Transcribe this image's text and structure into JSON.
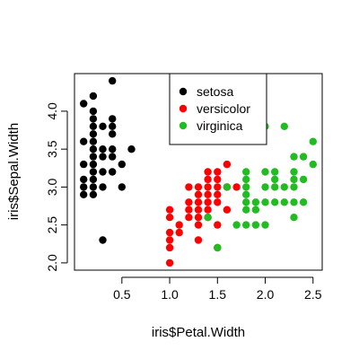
{
  "chart_data": {
    "type": "scatter",
    "title": "",
    "xlabel": "iris$Petal.Width",
    "ylabel": "iris$Sepal.Width",
    "xlim": [
      0.1,
      2.5
    ],
    "ylim": [
      2.0,
      4.4
    ],
    "x_ticks": [
      0.5,
      1.0,
      1.5,
      2.0,
      2.5
    ],
    "x_tick_labels": [
      "0.5",
      "1.0",
      "1.5",
      "2.0",
      "2.5"
    ],
    "y_ticks": [
      2.0,
      2.5,
      3.0,
      3.5,
      4.0
    ],
    "y_tick_labels": [
      "2.0",
      "2.5",
      "3.0",
      "3.5",
      "4.0"
    ],
    "grid": false,
    "legend_position": "top-center",
    "series": [
      {
        "name": "setosa",
        "color": "#000000",
        "points": [
          [
            0.1,
            3.6
          ],
          [
            0.1,
            4.1
          ],
          [
            0.1,
            3.1
          ],
          [
            0.1,
            3.0
          ],
          [
            0.1,
            2.9
          ],
          [
            0.1,
            3.3
          ],
          [
            0.2,
            3.5
          ],
          [
            0.2,
            3.0
          ],
          [
            0.2,
            3.2
          ],
          [
            0.2,
            3.1
          ],
          [
            0.2,
            3.6
          ],
          [
            0.2,
            3.4
          ],
          [
            0.2,
            4.0
          ],
          [
            0.2,
            3.8
          ],
          [
            0.2,
            3.7
          ],
          [
            0.2,
            3.9
          ],
          [
            0.2,
            4.2
          ],
          [
            0.2,
            2.9
          ],
          [
            0.2,
            3.3
          ],
          [
            0.3,
            3.4
          ],
          [
            0.3,
            3.5
          ],
          [
            0.3,
            3.8
          ],
          [
            0.3,
            3.0
          ],
          [
            0.3,
            2.3
          ],
          [
            0.3,
            3.2
          ],
          [
            0.4,
            3.9
          ],
          [
            0.4,
            4.4
          ],
          [
            0.4,
            3.4
          ],
          [
            0.4,
            3.8
          ],
          [
            0.4,
            3.7
          ],
          [
            0.4,
            3.5
          ],
          [
            0.4,
            3.2
          ],
          [
            0.5,
            3.3
          ],
          [
            0.5,
            3.0
          ],
          [
            0.6,
            3.5
          ]
        ]
      },
      {
        "name": "versicolor",
        "color": "#ff0000",
        "points": [
          [
            1.0,
            2.0
          ],
          [
            1.0,
            2.2
          ],
          [
            1.0,
            2.3
          ],
          [
            1.0,
            2.4
          ],
          [
            1.0,
            2.6
          ],
          [
            1.0,
            2.7
          ],
          [
            1.1,
            2.4
          ],
          [
            1.1,
            2.5
          ],
          [
            1.2,
            2.6
          ],
          [
            1.2,
            2.7
          ],
          [
            1.2,
            2.8
          ],
          [
            1.2,
            3.0
          ],
          [
            1.3,
            2.3
          ],
          [
            1.3,
            2.5
          ],
          [
            1.3,
            2.6
          ],
          [
            1.3,
            2.7
          ],
          [
            1.3,
            2.8
          ],
          [
            1.3,
            2.9
          ],
          [
            1.3,
            3.0
          ],
          [
            1.4,
            2.6
          ],
          [
            1.4,
            2.7
          ],
          [
            1.4,
            2.8
          ],
          [
            1.4,
            2.9
          ],
          [
            1.4,
            3.0
          ],
          [
            1.4,
            3.1
          ],
          [
            1.4,
            3.2
          ],
          [
            1.5,
            2.2
          ],
          [
            1.5,
            2.5
          ],
          [
            1.5,
            2.8
          ],
          [
            1.5,
            2.9
          ],
          [
            1.5,
            3.0
          ],
          [
            1.5,
            3.1
          ],
          [
            1.5,
            3.2
          ],
          [
            1.6,
            2.7
          ],
          [
            1.6,
            3.0
          ],
          [
            1.6,
            3.3
          ],
          [
            1.7,
            3.0
          ]
        ]
      },
      {
        "name": "virginica",
        "color": "#22bb22",
        "points": [
          [
            1.4,
            2.6
          ],
          [
            1.5,
            2.2
          ],
          [
            1.6,
            3.0
          ],
          [
            1.7,
            2.5
          ],
          [
            1.8,
            2.5
          ],
          [
            1.8,
            2.7
          ],
          [
            1.8,
            2.8
          ],
          [
            1.8,
            2.9
          ],
          [
            1.8,
            3.0
          ],
          [
            1.8,
            3.1
          ],
          [
            1.8,
            3.2
          ],
          [
            1.9,
            2.5
          ],
          [
            1.9,
            2.7
          ],
          [
            1.9,
            2.8
          ],
          [
            2.0,
            2.5
          ],
          [
            2.0,
            2.8
          ],
          [
            2.0,
            3.0
          ],
          [
            2.0,
            3.2
          ],
          [
            2.0,
            3.8
          ],
          [
            2.1,
            2.8
          ],
          [
            2.1,
            3.0
          ],
          [
            2.1,
            3.1
          ],
          [
            2.1,
            3.2
          ],
          [
            2.2,
            2.8
          ],
          [
            2.2,
            3.0
          ],
          [
            2.2,
            3.8
          ],
          [
            2.3,
            2.6
          ],
          [
            2.3,
            2.8
          ],
          [
            2.3,
            3.0
          ],
          [
            2.3,
            3.1
          ],
          [
            2.3,
            3.2
          ],
          [
            2.3,
            3.4
          ],
          [
            2.4,
            2.8
          ],
          [
            2.4,
            3.1
          ],
          [
            2.4,
            3.4
          ],
          [
            2.5,
            3.3
          ],
          [
            2.5,
            3.6
          ]
        ]
      }
    ]
  }
}
